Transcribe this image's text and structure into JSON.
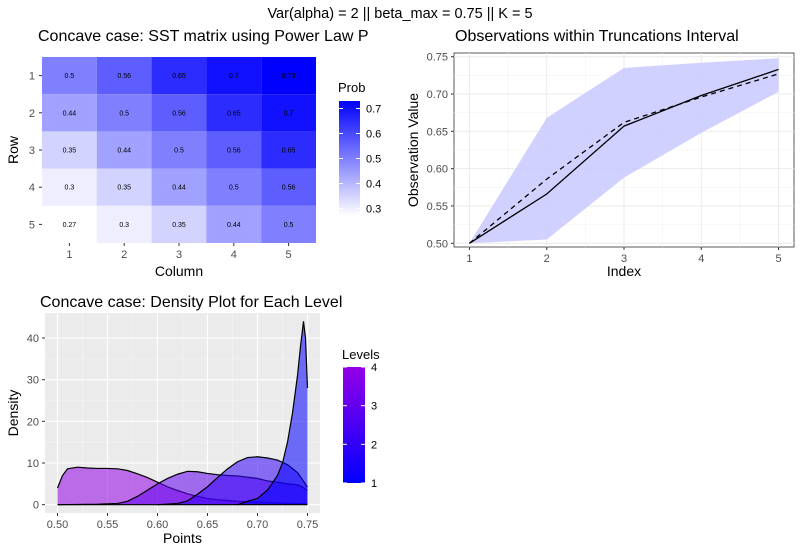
{
  "figure": {
    "suptitle": "Var(alpha) = 2 || beta_max = 0.75 || K = 5"
  },
  "colors": {
    "panel_grey": "#ebebeb",
    "grid_white": "#ffffff",
    "grid_light": "#ebebeb",
    "heat_low": "#ffffff",
    "heat_high": "#0000ff",
    "band_fill": "#c9c9ff",
    "density_low": "#0000ff",
    "density_high": "#9400e6",
    "line": "#000000",
    "axis_text": "#4d4d4d"
  },
  "chart_data": [
    {
      "type": "heatmap",
      "title": "Concave case: SST matrix using Power Law P",
      "xlabel": "Column",
      "ylabel": "Row",
      "x_ticks": [
        "1",
        "2",
        "3",
        "4",
        "5"
      ],
      "y_ticks": [
        "1",
        "2",
        "3",
        "4",
        "5"
      ],
      "cells": [
        [
          "0.5",
          "0.56",
          "0.65",
          "0.7",
          "0.73"
        ],
        [
          "0.44",
          "0.5",
          "0.56",
          "0.65",
          "0.7"
        ],
        [
          "0.35",
          "0.44",
          "0.5",
          "0.56",
          "0.65"
        ],
        [
          "0.3",
          "0.35",
          "0.44",
          "0.5",
          "0.56"
        ],
        [
          "0.27",
          "0.3",
          "0.35",
          "0.44",
          "0.5"
        ]
      ],
      "legend": {
        "title": "Prob",
        "ticks": [
          "0.3",
          "0.4",
          "0.5",
          "0.6",
          "0.7"
        ],
        "range": [
          0.27,
          0.73
        ],
        "position": "right"
      },
      "grid": true
    },
    {
      "type": "line",
      "title": "Observations within Truncations Interval",
      "xlabel": "Index",
      "ylabel": "Observation Value",
      "x": [
        1,
        2,
        3,
        4,
        5
      ],
      "x_ticks": [
        "1",
        "2",
        "3",
        "4",
        "5"
      ],
      "y_ticks": [
        "0.50",
        "0.55",
        "0.60",
        "0.65",
        "0.70",
        "0.75"
      ],
      "xlim": [
        1,
        5
      ],
      "ylim": [
        0.495,
        0.755
      ],
      "band": {
        "lower": [
          0.5,
          0.505,
          0.588,
          0.648,
          0.703
        ],
        "upper": [
          0.5,
          0.668,
          0.735,
          0.742,
          0.748
        ]
      },
      "series": [
        {
          "style": "solid",
          "values": [
            0.5,
            0.566,
            0.657,
            0.698,
            0.733
          ]
        },
        {
          "style": "dashed",
          "values": [
            0.5,
            0.586,
            0.662,
            0.696,
            0.727
          ]
        }
      ],
      "grid": true
    },
    {
      "type": "area",
      "title": "Concave case: Density Plot for Each Level",
      "xlabel": "Points",
      "ylabel": "Density",
      "x_ticks": [
        "0.50",
        "0.55",
        "0.60",
        "0.65",
        "0.70",
        "0.75"
      ],
      "y_ticks": [
        "0",
        "10",
        "20",
        "30",
        "40"
      ],
      "xlim": [
        0.4875,
        0.7625
      ],
      "ylim": [
        -2,
        46
      ],
      "legend": {
        "title": "Levels",
        "ticks": [
          "1",
          "2",
          "3",
          "4"
        ],
        "range": [
          1,
          4
        ],
        "position": "right"
      },
      "series": [
        {
          "level": 4,
          "x": [
            0.5,
            0.505,
            0.51,
            0.52,
            0.53,
            0.54,
            0.55,
            0.56,
            0.57,
            0.58,
            0.59,
            0.6,
            0.61,
            0.62,
            0.63,
            0.64,
            0.65,
            0.66,
            0.67,
            0.68,
            0.69,
            0.7,
            0.71,
            0.72,
            0.73,
            0.74,
            0.745,
            0.75
          ],
          "y": [
            4,
            7,
            8.6,
            9,
            8.8,
            8.7,
            8.7,
            8.6,
            8.2,
            7.4,
            6.5,
            5.4,
            4.3,
            3.4,
            2.6,
            2,
            1.5,
            1.2,
            1,
            0.8,
            0.7,
            0.6,
            0.5,
            0.4,
            0.35,
            0.3,
            0.25,
            0.2
          ]
        },
        {
          "level": 3,
          "x": [
            0.5,
            0.54,
            0.56,
            0.57,
            0.58,
            0.59,
            0.6,
            0.61,
            0.62,
            0.63,
            0.64,
            0.65,
            0.66,
            0.67,
            0.68,
            0.69,
            0.7,
            0.71,
            0.72,
            0.73,
            0.74,
            0.745,
            0.75
          ],
          "y": [
            0,
            0.1,
            0.3,
            0.8,
            2,
            3.5,
            5,
            6.3,
            7.3,
            8,
            7.9,
            7.5,
            7.2,
            7,
            6.9,
            6.6,
            6.3,
            5.7,
            5.4,
            5,
            4.8,
            4.2,
            3.4
          ]
        },
        {
          "level": 2,
          "x": [
            0.6,
            0.62,
            0.63,
            0.64,
            0.65,
            0.66,
            0.67,
            0.68,
            0.69,
            0.7,
            0.71,
            0.72,
            0.73,
            0.74,
            0.745,
            0.75
          ],
          "y": [
            0,
            0.3,
            0.9,
            2.5,
            4.3,
            6.5,
            8.6,
            10.3,
            11.3,
            11.5,
            11.2,
            10.7,
            9.6,
            7.7,
            6,
            4.2
          ]
        },
        {
          "level": 1,
          "x": [
            0.68,
            0.69,
            0.7,
            0.71,
            0.72,
            0.725,
            0.73,
            0.735,
            0.74,
            0.743,
            0.746,
            0.748,
            0.75
          ],
          "y": [
            0,
            0.8,
            1.5,
            3.5,
            7,
            10,
            15,
            22,
            31,
            38,
            44,
            40,
            28
          ]
        }
      ],
      "grid": true
    }
  ]
}
